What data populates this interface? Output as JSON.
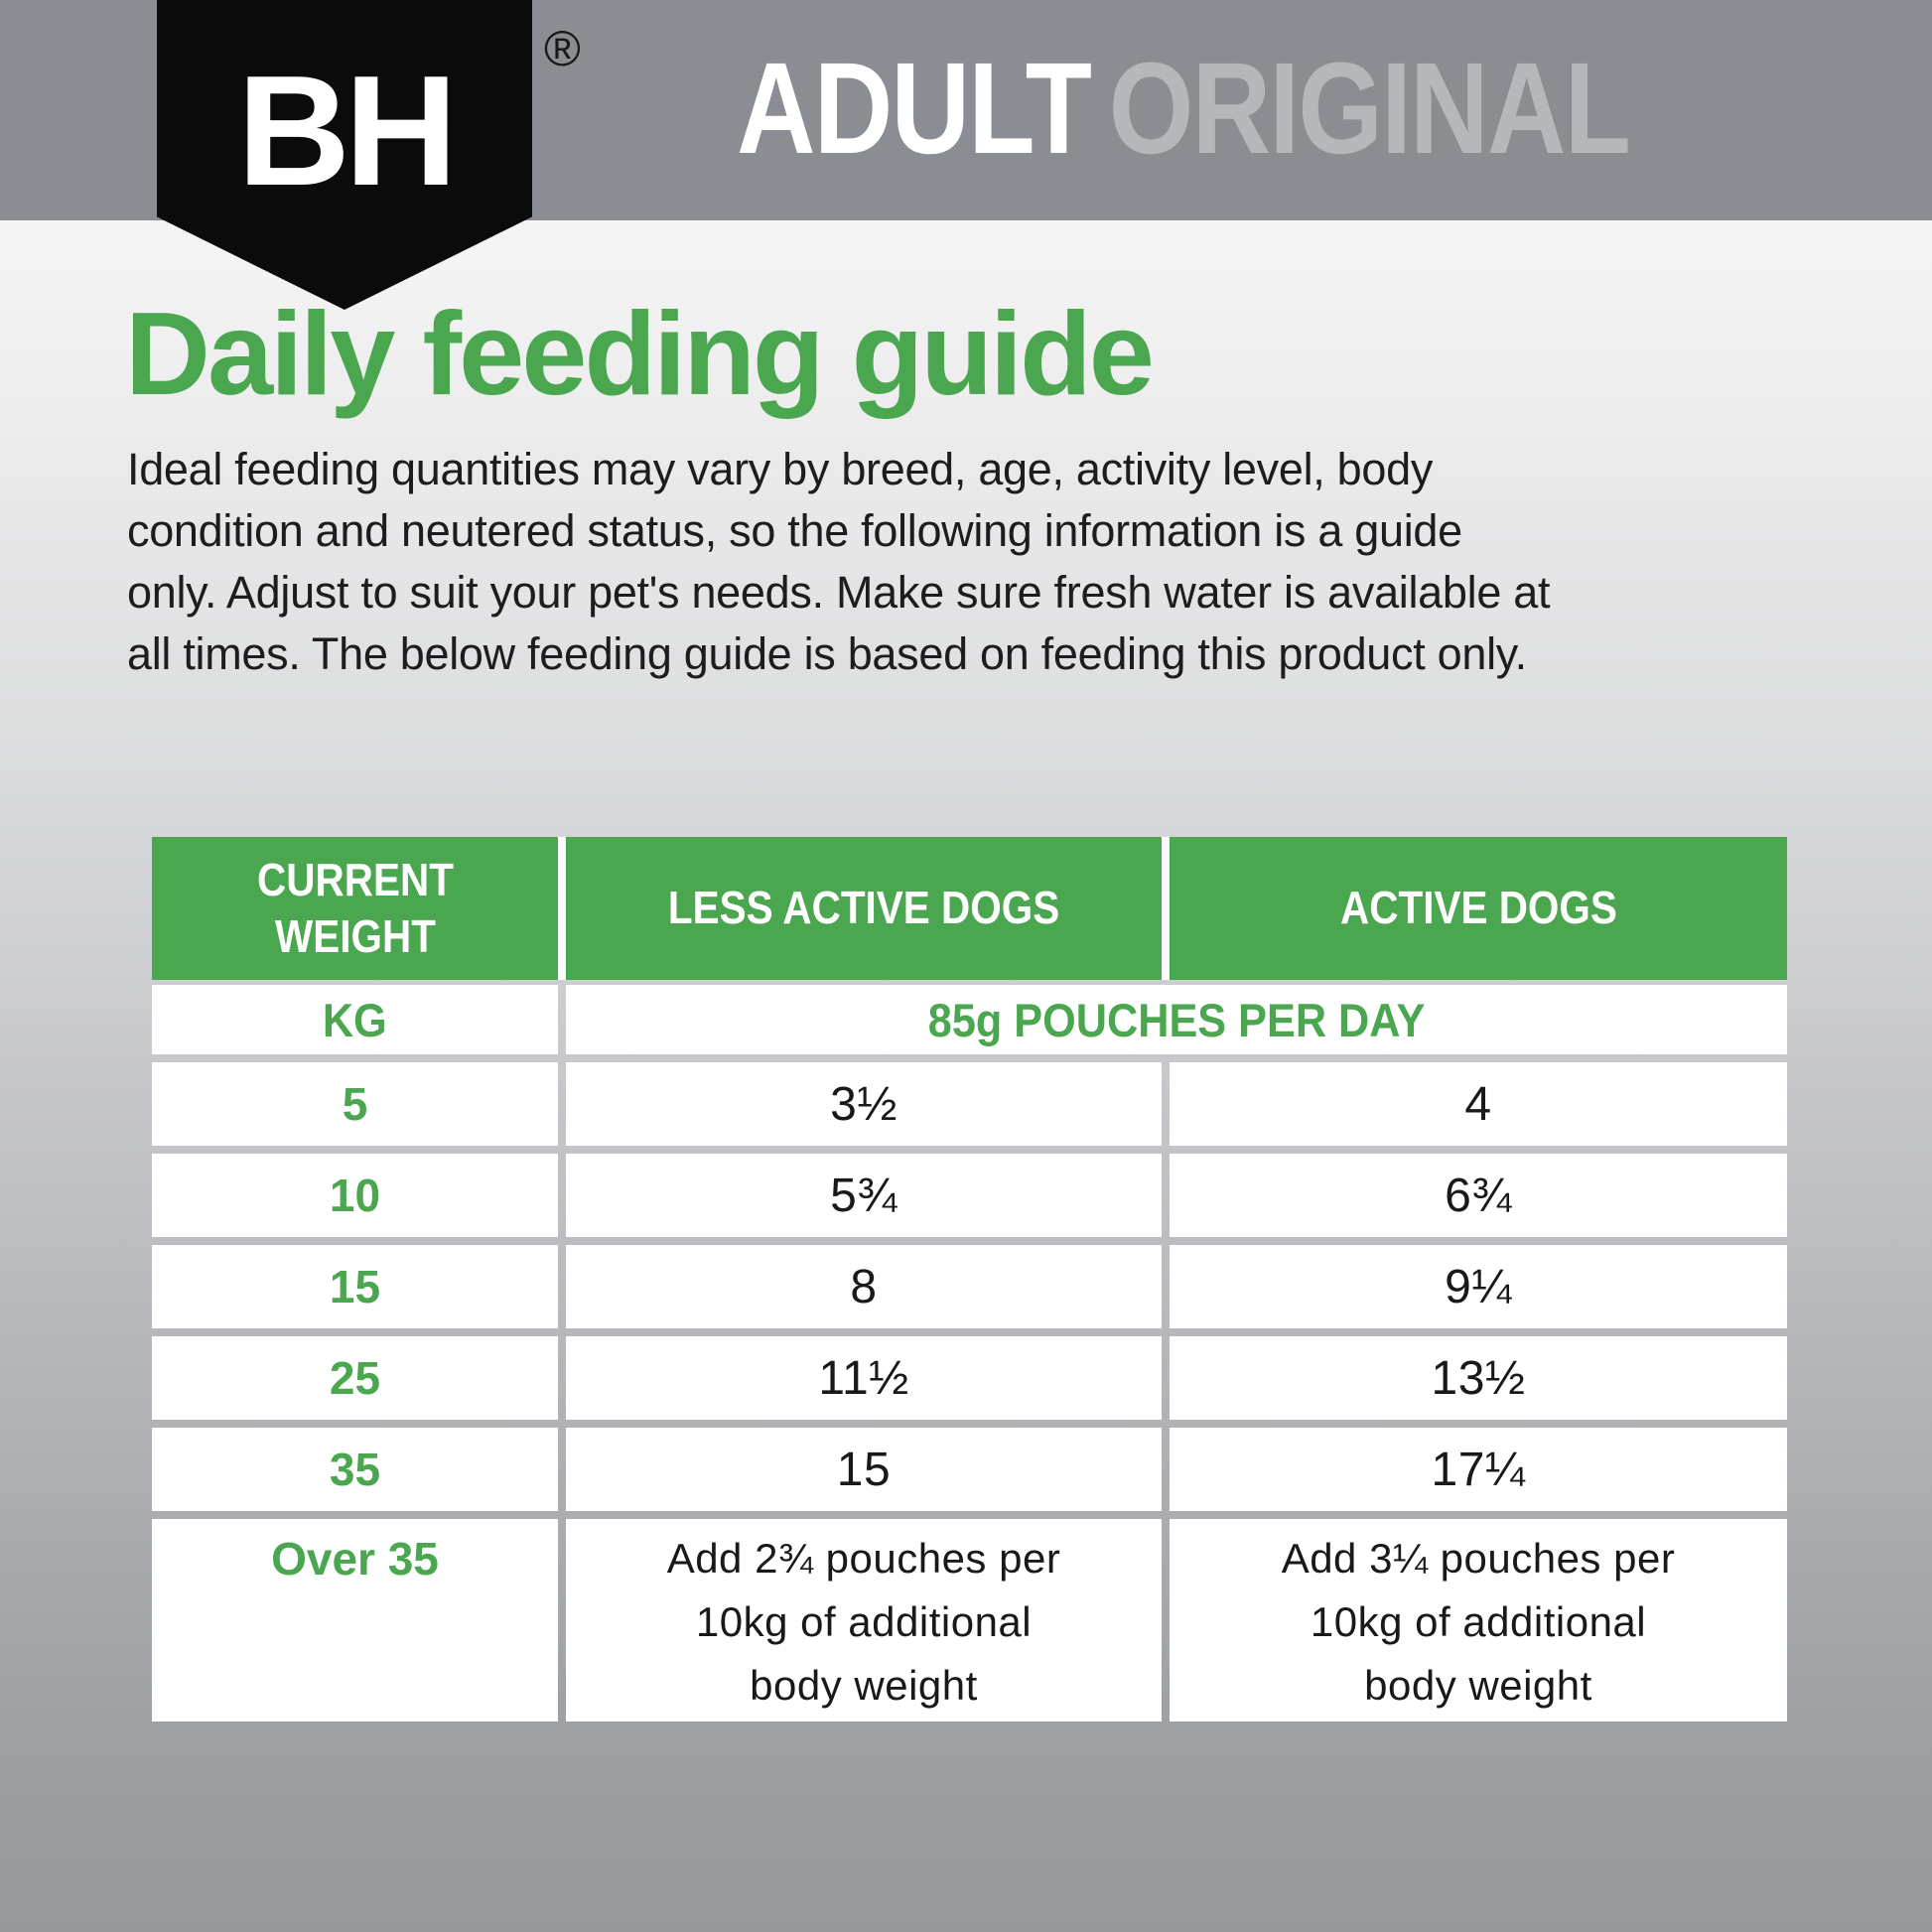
{
  "header": {
    "brand": "BH",
    "registered_mark": "®",
    "product_line": "ADULT",
    "product_variant": "ORIGINAL"
  },
  "guide": {
    "title": "Daily feeding guide",
    "intro_lines": [
      "Ideal feeding quantities may vary by breed, age, activity level, body",
      "condition and neutered status, so the following information is a guide",
      "only. Adjust to suit your pet's needs. Make sure fresh water is available at",
      "all times. The below feeding guide is based on feeding this product only."
    ]
  },
  "table": {
    "columns": [
      "CURRENT WEIGHT",
      "LESS ACTIVE DOGS",
      "ACTIVE DOGS"
    ],
    "unit_row": {
      "weight_unit": "KG",
      "span_label": "85g POUCHES PER DAY"
    },
    "rows": [
      {
        "weight": "5",
        "less_active": "3½",
        "active": "4"
      },
      {
        "weight": "10",
        "less_active": "5¾",
        "active": "6¾"
      },
      {
        "weight": "15",
        "less_active": "8",
        "active": "9¼"
      },
      {
        "weight": "25",
        "less_active": "11½",
        "active": "13½"
      },
      {
        "weight": "35",
        "less_active": "15",
        "active": "17¼"
      },
      {
        "weight": "Over 35",
        "less_active": "Add 2¾ pouches per 10kg of additional body weight",
        "active": "Add 3¼ pouches per 10kg of additional body weight"
      }
    ]
  },
  "colors": {
    "brand_green": "#4AA64F",
    "banner_gray": "#8A8E93",
    "variant_text_gray": "#B5B7BA",
    "shield_black": "#0B0B0C",
    "body_text": "#1D1D1F"
  }
}
